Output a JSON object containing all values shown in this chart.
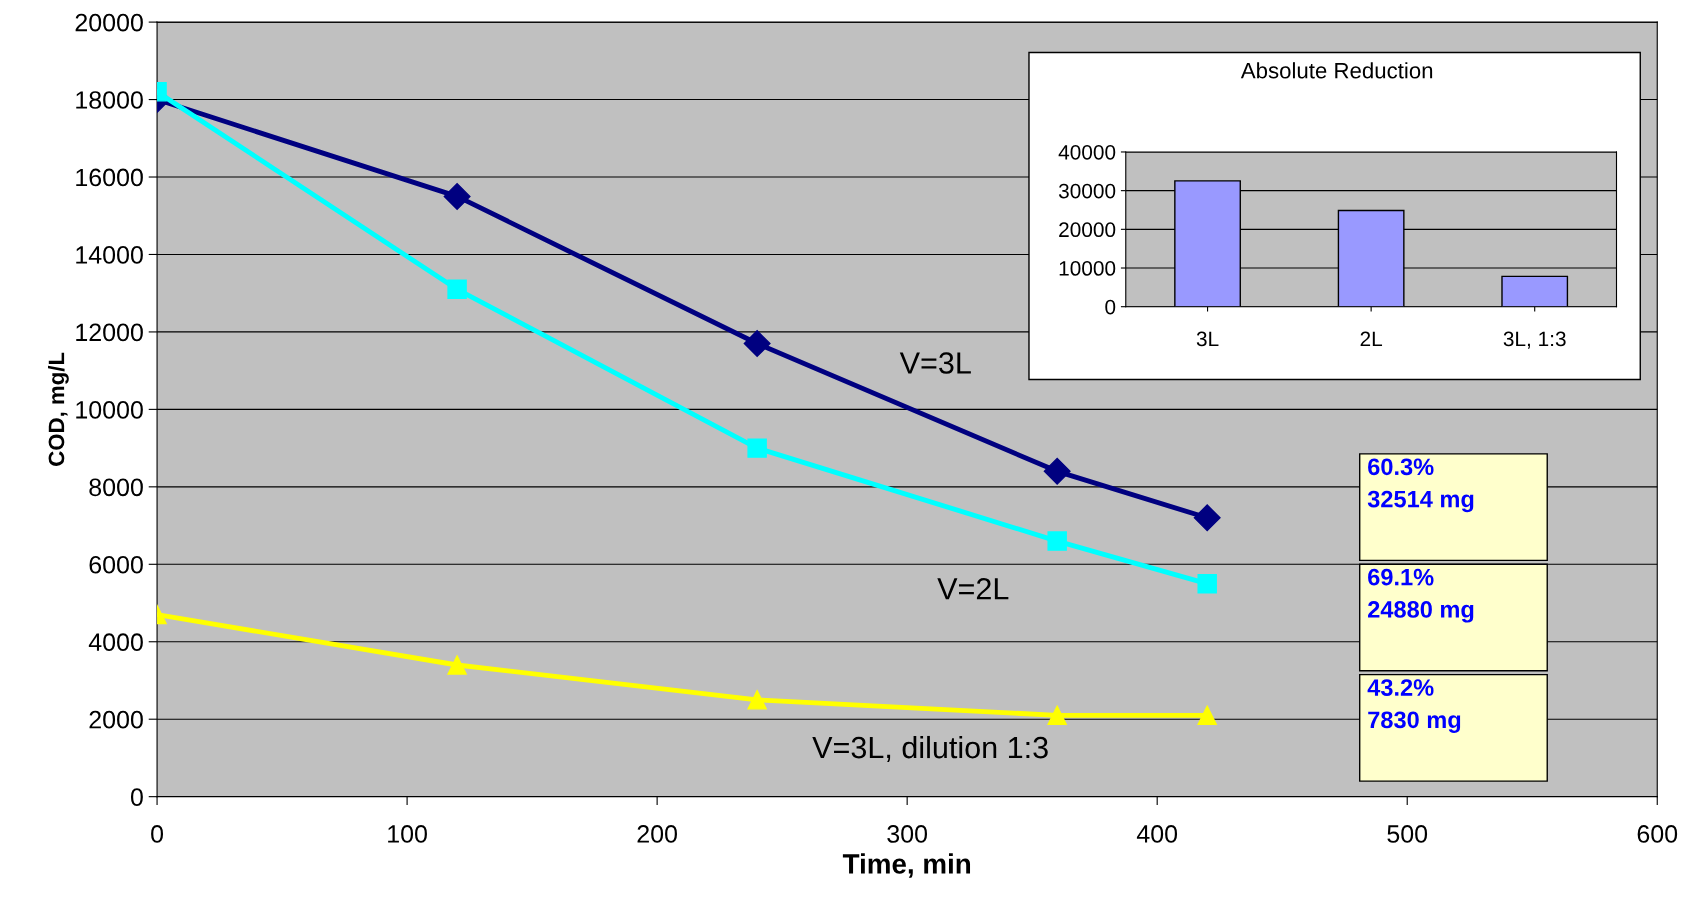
{
  "chart_data": [
    {
      "type": "line",
      "xlabel": "Time, min",
      "ylabel": "COD, mg/L",
      "xlim": [
        0,
        600
      ],
      "xticks": [
        0,
        100,
        200,
        300,
        400,
        500,
        600
      ],
      "ylim": [
        0,
        20000
      ],
      "yticks": [
        0,
        2000,
        4000,
        6000,
        8000,
        10000,
        12000,
        14000,
        16000,
        18000,
        20000
      ],
      "grid": "y",
      "legend": false,
      "series": [
        {
          "name": "V=3L",
          "color": "#000080",
          "marker": "diamond",
          "x": [
            0,
            120,
            240,
            360,
            420
          ],
          "values": [
            18000,
            15500,
            11700,
            8400,
            7200
          ]
        },
        {
          "name": "V=2L",
          "color": "#00ffff",
          "marker": "square",
          "x": [
            0,
            120,
            240,
            360,
            420
          ],
          "values": [
            18200,
            13100,
            9000,
            6600,
            5500
          ]
        },
        {
          "name": "V=3L, dilution 1:3",
          "color": "#ffff00",
          "marker": "triangle",
          "x": [
            0,
            120,
            240,
            360,
            420
          ],
          "values": [
            4700,
            3400,
            2500,
            2100,
            2100
          ]
        }
      ],
      "annotations": [
        "60.3%\n32514 mg",
        "69.1%\n24880 mg",
        "43.2%\n7830 mg"
      ]
    },
    {
      "type": "bar",
      "title": "Absolute Reduction",
      "categories": [
        "3L",
        "2L",
        "3L, 1:3"
      ],
      "values": [
        32514,
        24880,
        7830
      ],
      "color": "#9999ff",
      "ylim": [
        0,
        40000
      ],
      "yticks": [
        0,
        10000,
        20000,
        30000,
        40000
      ],
      "grid": "y"
    }
  ]
}
